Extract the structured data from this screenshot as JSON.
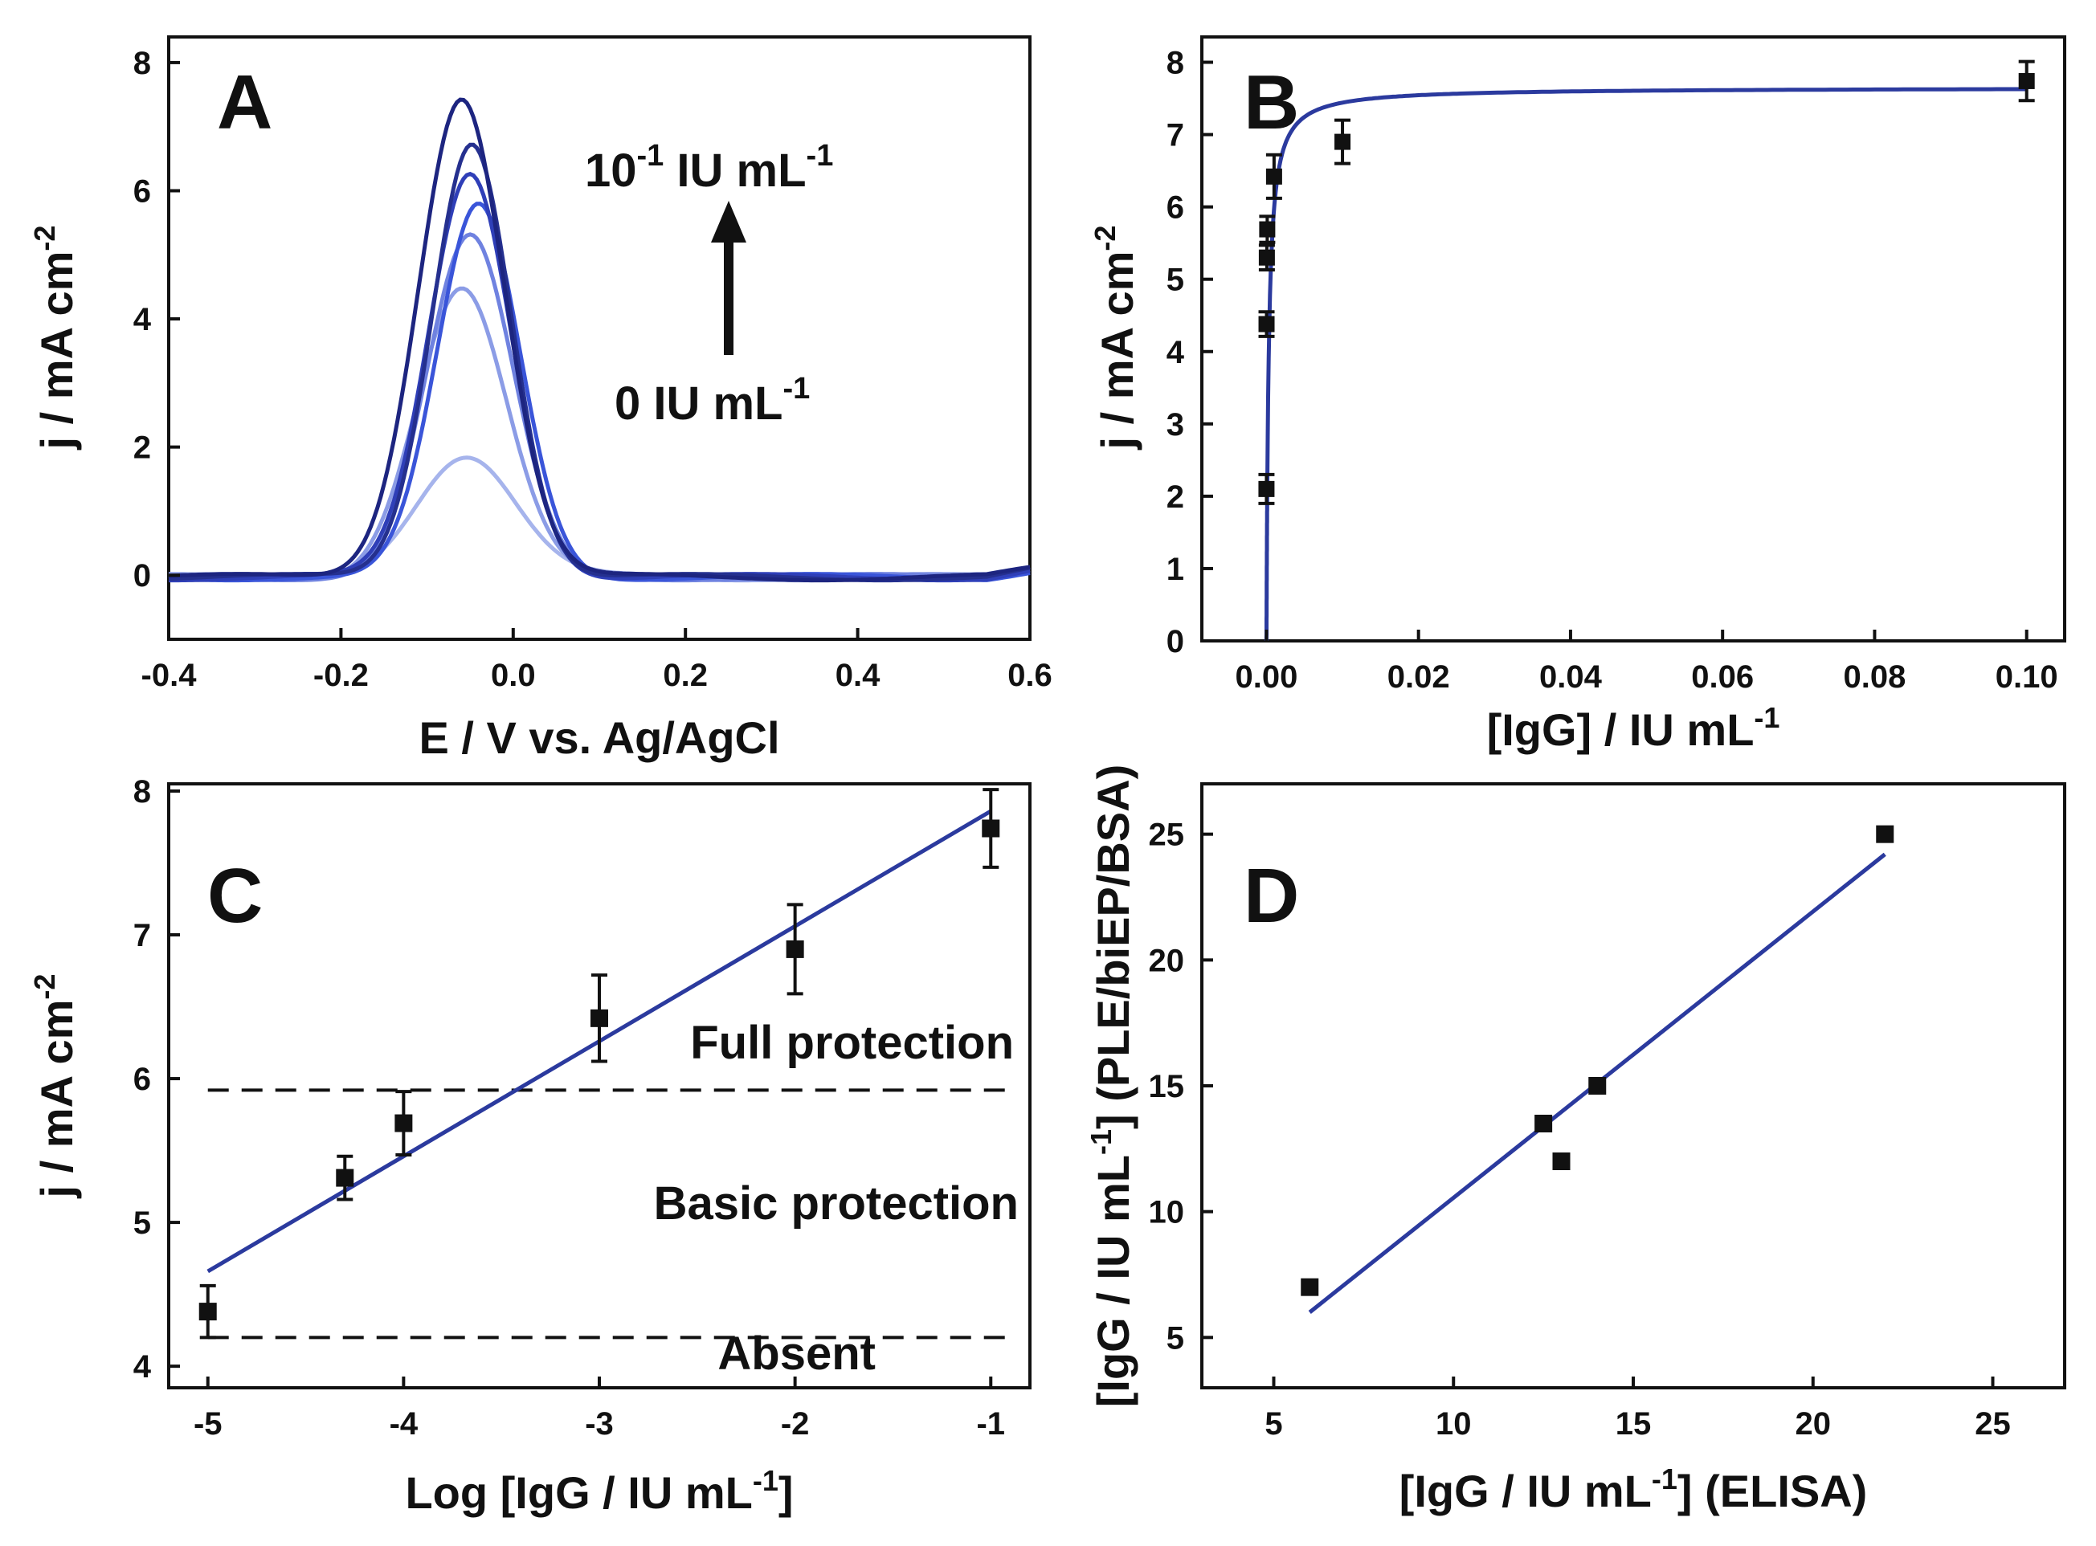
{
  "figure": {
    "panels": [
      "A",
      "B",
      "C",
      "D"
    ]
  },
  "chart_data": [
    {
      "panel": "A",
      "type": "line",
      "title": "",
      "xlabel": "E / V vs. Ag/AgCl",
      "ylabel": "j / mA cm",
      "ylabel_sup": "-2",
      "xlim": [
        -0.4,
        0.6
      ],
      "ylim": [
        -1,
        8.4
      ],
      "xticks": [
        "-0.4",
        "-0.2",
        "0.0",
        "0.2",
        "0.4",
        "0.6"
      ],
      "yticks": [
        "0",
        "2",
        "4",
        "6",
        "8"
      ],
      "annotations": {
        "top": "10",
        "top_sup": "-1",
        "top_rest": " IU mL",
        "top_sup2": "-1",
        "bottom": "0 IU mL",
        "bottom_sup": "-1"
      },
      "series": [
        {
          "name": "c1",
          "peak_x": -0.055,
          "peak_y": 1.9,
          "width": 0.058,
          "color": "#a6b4ec"
        },
        {
          "name": "c2",
          "peak_x": -0.06,
          "peak_y": 4.5,
          "width": 0.052,
          "color": "#8b9ce6"
        },
        {
          "name": "c3",
          "peak_x": -0.05,
          "peak_y": 5.3,
          "width": 0.05,
          "color": "#6f82e0"
        },
        {
          "name": "c4",
          "peak_x": -0.04,
          "peak_y": 5.8,
          "width": 0.048,
          "color": "#3a55d9"
        },
        {
          "name": "c5",
          "peak_x": -0.05,
          "peak_y": 6.3,
          "width": 0.048,
          "color": "#2f3fb8"
        },
        {
          "name": "c6",
          "peak_x": -0.048,
          "peak_y": 6.8,
          "width": 0.046,
          "color": "#25308f"
        },
        {
          "name": "c7",
          "peak_x": -0.06,
          "peak_y": 7.5,
          "width": 0.05,
          "color": "#1d2580"
        }
      ]
    },
    {
      "panel": "B",
      "type": "scatter",
      "title": "",
      "xlabel": "[IgG] / IU mL",
      "xlabel_sup": "-1",
      "ylabel": "j / mA cm",
      "ylabel_sup": "-2",
      "xlim": [
        -0.0085,
        0.105
      ],
      "ylim": [
        0,
        8.35
      ],
      "xticks": [
        "0.00",
        "0.02",
        "0.04",
        "0.06",
        "0.08",
        "0.10"
      ],
      "yticks": [
        "0",
        "1",
        "2",
        "3",
        "4",
        "5",
        "6",
        "7",
        "8"
      ],
      "points": [
        {
          "x": 0.0,
          "y": 2.1,
          "err": 0.2
        },
        {
          "x": 1e-05,
          "y": 4.38,
          "err": 0.17
        },
        {
          "x": 5e-05,
          "y": 5.3,
          "err": 0.17
        },
        {
          "x": 0.0001,
          "y": 5.69,
          "err": 0.18
        },
        {
          "x": 0.001,
          "y": 6.42,
          "err": 0.3
        },
        {
          "x": 0.01,
          "y": 6.9,
          "err": 0.3
        },
        {
          "x": 0.1,
          "y": 7.74,
          "err": 0.27
        }
      ],
      "fit": {
        "type": "langmuir",
        "jmax": 7.65,
        "k": 0.00028
      }
    },
    {
      "panel": "C",
      "type": "scatter",
      "title": "",
      "xlabel": "Log [IgG / IU mL",
      "xlabel_sup": "-1",
      "xlabel_end": "]",
      "ylabel": "j / mA cm",
      "ylabel_sup": "-2",
      "xlim": [
        -5.2,
        -0.8
      ],
      "ylim": [
        3.85,
        8.05
      ],
      "xticks": [
        "-5",
        "-4",
        "-3",
        "-2",
        "-1"
      ],
      "yticks": [
        "4",
        "5",
        "6",
        "7",
        "8"
      ],
      "points": [
        {
          "x": -5,
          "y": 4.38,
          "err": 0.18
        },
        {
          "x": -4.3,
          "y": 5.31,
          "err": 0.15
        },
        {
          "x": -4,
          "y": 5.69,
          "err": 0.22
        },
        {
          "x": -3,
          "y": 6.42,
          "err": 0.3
        },
        {
          "x": -2,
          "y": 6.9,
          "err": 0.31
        },
        {
          "x": -1,
          "y": 7.74,
          "err": 0.27
        }
      ],
      "fit": {
        "x": [
          -5,
          -1
        ],
        "y": [
          4.66,
          7.86
        ]
      },
      "thresholds": [
        5.92,
        4.2
      ],
      "regions": [
        "Full protection",
        "Basic protection",
        "Absent"
      ]
    },
    {
      "panel": "D",
      "type": "scatter",
      "title": "",
      "xlabel": "[IgG / IU mL",
      "xlabel_sup": "-1",
      "xlabel_end": "] (ELISA)",
      "ylabel": "[IgG / IU mL",
      "ylabel_sup": "-1",
      "ylabel_end": "] (PLE/biEP/BSA)",
      "xlim": [
        3,
        27
      ],
      "ylim": [
        3,
        27
      ],
      "xticks": [
        "5",
        "10",
        "15",
        "20",
        "25"
      ],
      "yticks": [
        "5",
        "10",
        "15",
        "20",
        "25"
      ],
      "points": [
        {
          "x": 6,
          "y": 7
        },
        {
          "x": 12.5,
          "y": 13.5
        },
        {
          "x": 13,
          "y": 12
        },
        {
          "x": 14,
          "y": 15
        },
        {
          "x": 22,
          "y": 25
        }
      ],
      "fit": {
        "x": [
          6,
          22
        ],
        "y": [
          6.0,
          24.2
        ]
      }
    }
  ]
}
